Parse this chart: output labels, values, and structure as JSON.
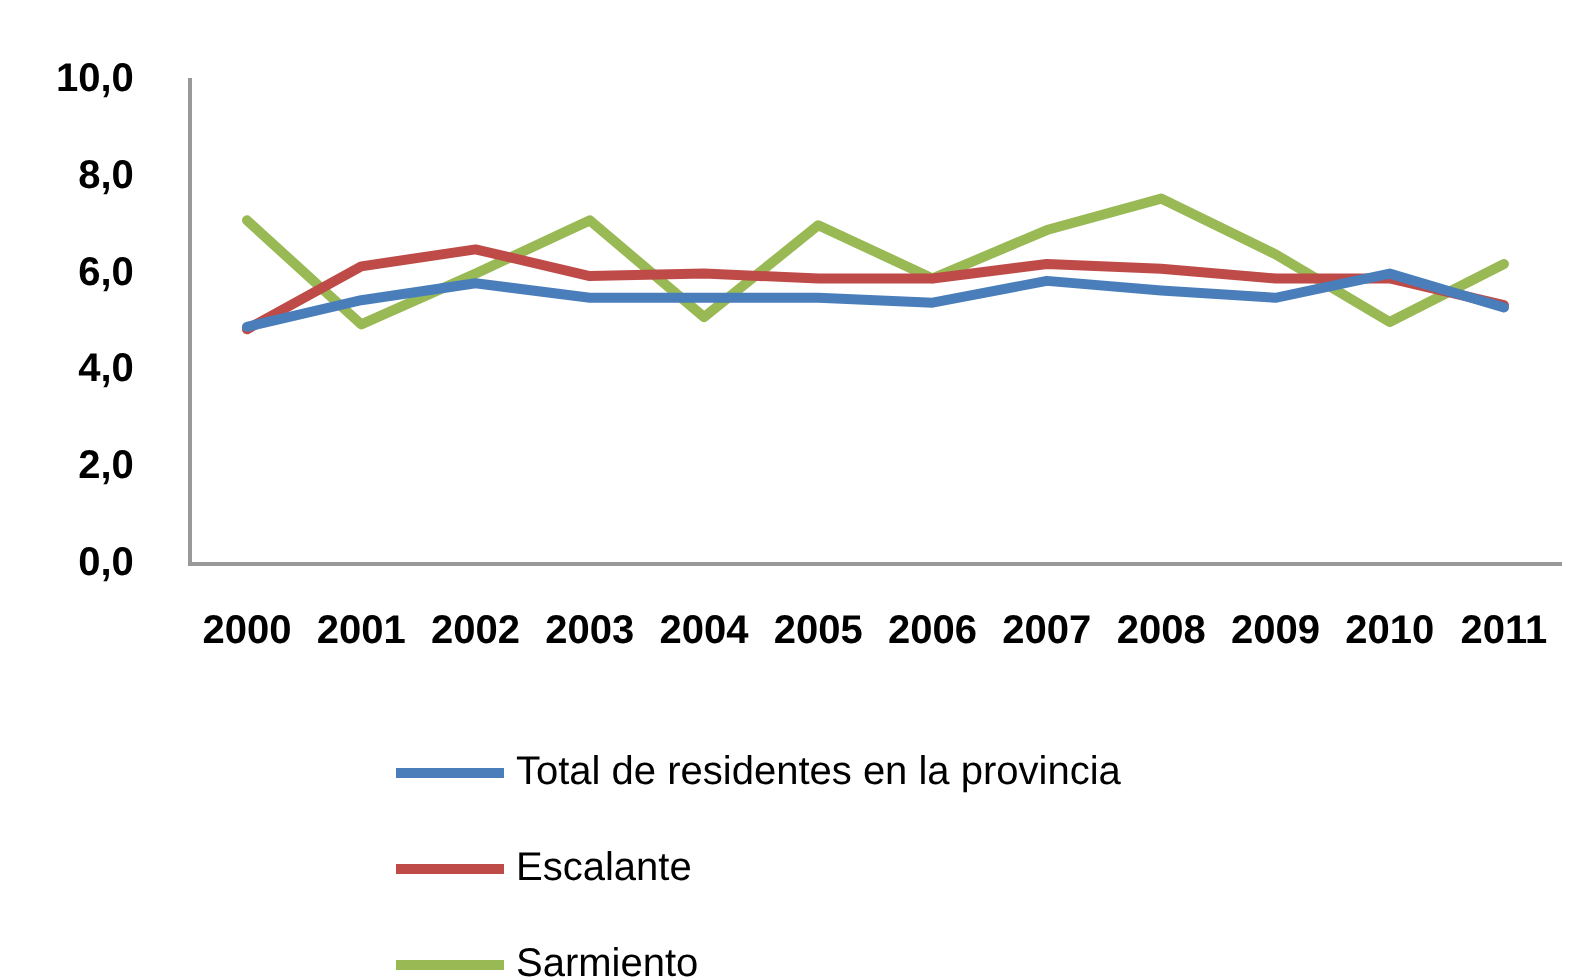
{
  "chart_data": {
    "type": "line",
    "categories": [
      "2000",
      "2001",
      "2002",
      "2003",
      "2004",
      "2005",
      "2006",
      "2007",
      "2008",
      "2009",
      "2010",
      "2011"
    ],
    "series": [
      {
        "name": "Total de residentes en la provincia",
        "color": "#4a7ebb",
        "values": [
          4.9,
          5.45,
          5.8,
          5.5,
          5.5,
          5.5,
          5.4,
          5.85,
          5.65,
          5.5,
          6.0,
          5.3
        ]
      },
      {
        "name": "Escalante",
        "color": "#be4b48",
        "values": [
          4.85,
          6.15,
          6.5,
          5.95,
          6.0,
          5.9,
          5.9,
          6.2,
          6.1,
          5.9,
          5.9,
          5.35
        ]
      },
      {
        "name": "Sarmiento",
        "color": "#98b954",
        "values": [
          7.1,
          4.95,
          6.0,
          7.1,
          5.1,
          7.0,
          5.9,
          6.9,
          7.55,
          6.4,
          5.0,
          6.2
        ]
      }
    ],
    "ylim": [
      0,
      10
    ],
    "yticks": [
      {
        "value": 0,
        "label": "0,0"
      },
      {
        "value": 2,
        "label": "2,0"
      },
      {
        "value": 4,
        "label": "4,0"
      },
      {
        "value": 6,
        "label": "6,0"
      },
      {
        "value": 8,
        "label": "8,0"
      },
      {
        "value": 10,
        "label": "10,0"
      }
    ],
    "grid": false,
    "legend": "bottom",
    "marker": "none",
    "line_style": "solid"
  }
}
